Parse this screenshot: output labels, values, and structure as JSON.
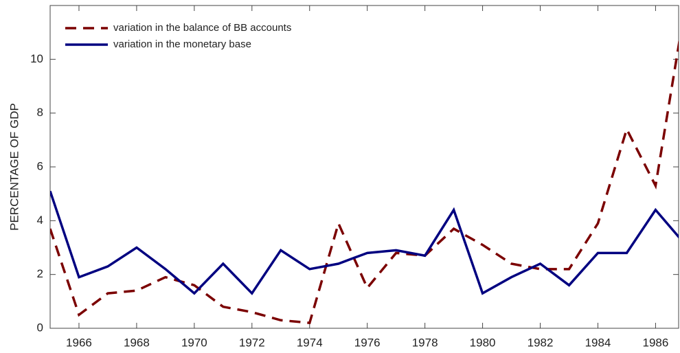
{
  "chart_data": {
    "type": "line",
    "y_label": "PERCENTAGE OF GDP",
    "x": [
      1965,
      1966,
      1967,
      1968,
      1969,
      1970,
      1971,
      1972,
      1973,
      1974,
      1975,
      1976,
      1977,
      1978,
      1979,
      1980,
      1981,
      1982,
      1983,
      1984,
      1985,
      1986,
      1987
    ],
    "series": [
      {
        "name": "variation in the balance of BB accounts",
        "color": "#7b0000",
        "dash": true,
        "values": [
          3.7,
          0.5,
          1.3,
          1.4,
          1.9,
          1.6,
          0.8,
          0.6,
          0.3,
          0.2,
          3.9,
          1.5,
          2.8,
          2.7,
          3.7,
          3.1,
          2.4,
          2.2,
          2.2,
          3.9,
          7.4,
          5.3,
          11.8
        ]
      },
      {
        "name": "variation in the monetary base",
        "color": "#000080",
        "dash": false,
        "values": [
          5.1,
          1.9,
          2.3,
          3.0,
          2.2,
          1.3,
          2.4,
          1.3,
          2.9,
          2.2,
          2.4,
          2.8,
          2.9,
          2.7,
          4.4,
          1.3,
          1.9,
          2.4,
          1.6,
          2.8,
          2.8,
          4.4,
          3.15
        ]
      }
    ],
    "xlim": [
      1965,
      1986.8
    ],
    "xticks": [
      1966,
      1968,
      1970,
      1972,
      1974,
      1976,
      1978,
      1980,
      1982,
      1984,
      1986
    ],
    "ylim": [
      0,
      12
    ],
    "yticks": [
      0,
      2,
      4,
      6,
      8,
      10
    ],
    "legend": "upper-left",
    "grid": false
  }
}
